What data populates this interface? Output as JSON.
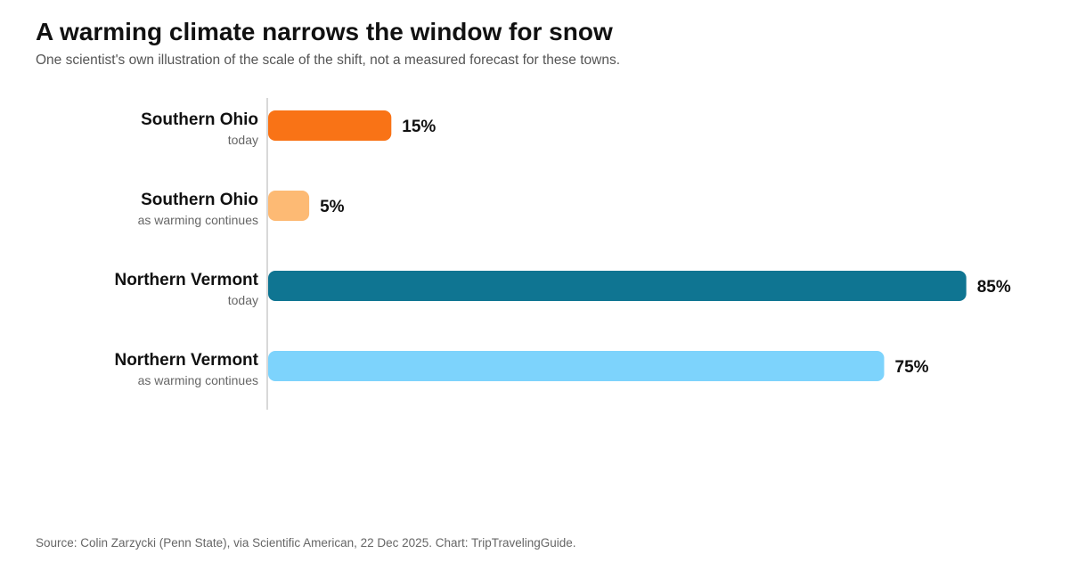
{
  "header": {
    "title": "A warming climate narrows the window for snow",
    "subtitle": "One scientist's own illustration of the scale of the shift, not a measured forecast for these towns."
  },
  "chart_data": {
    "type": "bar",
    "orientation": "horizontal",
    "value_suffix": "%",
    "xlim": [
      0,
      100
    ],
    "grid": false,
    "categories": [
      {
        "label": "Southern Ohio",
        "sublabel": "today",
        "value": 15,
        "color": "#f97316"
      },
      {
        "label": "Southern Ohio",
        "sublabel": "as warming continues",
        "value": 5,
        "color": "#fdba74"
      },
      {
        "label": "Northern Vermont",
        "sublabel": "today",
        "value": 85,
        "color": "#0f7592"
      },
      {
        "label": "Northern Vermont",
        "sublabel": "as warming continues",
        "value": 75,
        "color": "#7dd3fc"
      }
    ]
  },
  "footer": {
    "source": "Source: Colin Zarzycki (Penn State), via Scientific American, 22 Dec 2025. Chart: TripTravelingGuide."
  }
}
